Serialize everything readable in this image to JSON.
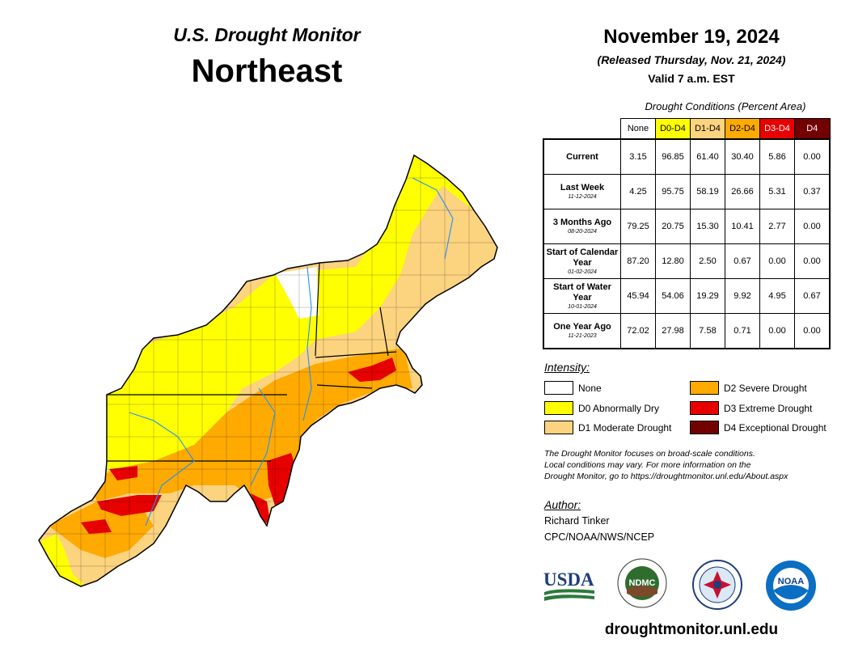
{
  "header": {
    "title_line1": "U.S. Drought Monitor",
    "title_line2": "Northeast",
    "date": "November 19, 2024",
    "released": "(Released Thursday, Nov. 21, 2024)",
    "valid": "Valid 7 a.m. EST"
  },
  "table": {
    "caption": "Drought Conditions (Percent Area)",
    "columns": [
      {
        "label": "None",
        "color": "#ffffff",
        "text_color": "#000000"
      },
      {
        "label": "D0-D4",
        "color": "#ffff00",
        "text_color": "#000000"
      },
      {
        "label": "D1-D4",
        "color": "#fcd37f",
        "text_color": "#000000"
      },
      {
        "label": "D2-D4",
        "color": "#ffaa00",
        "text_color": "#000000"
      },
      {
        "label": "D3-D4",
        "color": "#e60000",
        "text_color": "#ffffff"
      },
      {
        "label": "D4",
        "color": "#730000",
        "text_color": "#ffffff"
      }
    ],
    "rows": [
      {
        "label": "Current",
        "sub": "",
        "values": [
          "3.15",
          "96.85",
          "61.40",
          "30.40",
          "5.86",
          "0.00"
        ]
      },
      {
        "label": "Last Week",
        "sub": "11-12-2024",
        "values": [
          "4.25",
          "95.75",
          "58.19",
          "26.66",
          "5.31",
          "0.37"
        ]
      },
      {
        "label": "3 Months Ago",
        "sub": "08-20-2024",
        "values": [
          "79.25",
          "20.75",
          "15.30",
          "10.41",
          "2.77",
          "0.00"
        ]
      },
      {
        "label": "Start of Calendar Year",
        "sub": "01-02-2024",
        "values": [
          "87.20",
          "12.80",
          "2.50",
          "0.67",
          "0.00",
          "0.00"
        ]
      },
      {
        "label": "Start of Water Year",
        "sub": "10-01-2024",
        "values": [
          "45.94",
          "54.06",
          "19.29",
          "9.92",
          "4.95",
          "0.67"
        ]
      },
      {
        "label": "One Year Ago",
        "sub": "11-21-2023",
        "values": [
          "72.02",
          "27.98",
          "7.58",
          "0.71",
          "0.00",
          "0.00"
        ]
      }
    ]
  },
  "legend": {
    "heading": "Intensity:",
    "items": [
      {
        "label": "None",
        "color": "#ffffff"
      },
      {
        "label": "D0 Abnormally Dry",
        "color": "#ffff00"
      },
      {
        "label": "D1 Moderate Drought",
        "color": "#fcd37f"
      },
      {
        "label": "D2 Severe Drought",
        "color": "#ffaa00"
      },
      {
        "label": "D3 Extreme Drought",
        "color": "#e60000"
      },
      {
        "label": "D4 Exceptional Drought",
        "color": "#730000"
      }
    ]
  },
  "note": {
    "line1": "The Drought Monitor focuses on broad-scale conditions.",
    "line2": "Local conditions may vary. For more information on the",
    "line3": "Drought Monitor, go to https://droughtmonitor.unl.edu/About.aspx"
  },
  "author": {
    "heading": "Author:",
    "name": "Richard Tinker",
    "org": "CPC/NOAA/NWS/NCEP"
  },
  "logos": {
    "usda": "USDA",
    "ndmc": "NDMC",
    "noaa": "NOAA"
  },
  "footer_url": "droughtmonitor.unl.edu"
}
